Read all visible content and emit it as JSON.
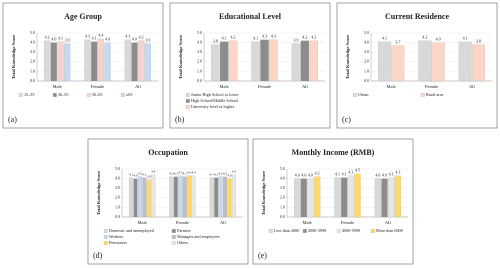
{
  "chart_data": [
    {
      "type": "bar",
      "title": "Age Group",
      "panel_label": "(a)",
      "ylabel": "Total Knowledge Score",
      "categories": [
        "Male",
        "Female",
        "All"
      ],
      "series": [
        {
          "name": "15–35",
          "color": "#d9d9d9",
          "values": [
            4.2,
            4.3,
            4.3
          ],
          "value_labels": [
            "4.2",
            "4.3",
            "4.3"
          ]
        },
        {
          "name": "36–55",
          "color": "#8c8c8c",
          "values": [
            4.0,
            4.1,
            4.0
          ],
          "value_labels": [
            "4.0",
            "4.1",
            "4.0"
          ]
        },
        {
          "name": "56–65",
          "color": "#f6d2cf",
          "values": [
            4.1,
            4.4,
            4.2
          ],
          "value_labels": [
            "4.1",
            "4.4",
            "4.2"
          ]
        },
        {
          "name": "≥65",
          "color": "#c5d9f1",
          "values": [
            3.9,
            4.0,
            3.9
          ],
          "value_labels": [
            "3.9",
            "4.0",
            "3.9"
          ]
        }
      ],
      "ylim": [
        0,
        5
      ],
      "yticks": [
        {
          "value": 0,
          "label": "0.0"
        },
        {
          "value": 1,
          "label": "1.0"
        },
        {
          "value": 2,
          "label": "2.0"
        },
        {
          "value": 3,
          "label": "3.0"
        },
        {
          "value": 4,
          "label": "4.0"
        },
        {
          "value": 5,
          "label": "5.0"
        }
      ],
      "grid": true
    },
    {
      "type": "bar",
      "title": "Educational Level",
      "panel_label": "(b)",
      "ylabel": "Total Knowledge Score",
      "categories": [
        "Male",
        "Female",
        "All"
      ],
      "series": [
        {
          "name": "Junior High School or lower",
          "color": "#d9d9d9",
          "values": [
            3.8,
            4.1,
            3.9
          ],
          "value_labels": [
            "3.8",
            "4.1",
            "3.9"
          ]
        },
        {
          "name": "High School/Middle School",
          "color": "#8c8c8c",
          "values": [
            4.1,
            4.3,
            4.2
          ],
          "value_labels": [
            "4.1",
            "4.3",
            "4.2"
          ]
        },
        {
          "name": "University level or higher",
          "color": "#fbd5c5",
          "values": [
            4.2,
            4.3,
            4.2
          ],
          "value_labels": [
            "4.2",
            "4.3",
            "4.2"
          ]
        }
      ],
      "ylim": [
        0,
        5
      ],
      "yticks": [
        {
          "value": 0,
          "label": "0.0"
        },
        {
          "value": 1,
          "label": "1.0"
        },
        {
          "value": 2,
          "label": "2.0"
        },
        {
          "value": 3,
          "label": "3.0"
        },
        {
          "value": 4,
          "label": "4.0"
        },
        {
          "value": 5,
          "label": "5.0"
        }
      ],
      "grid": true
    },
    {
      "type": "bar",
      "title": "Current Residence",
      "panel_label": "(c)",
      "ylabel": "Total Knowledge Score",
      "categories": [
        "Male",
        "Female",
        "All"
      ],
      "series": [
        {
          "name": "Urban",
          "color": "#d9d9d9",
          "values": [
            4.1,
            4.2,
            4.1
          ],
          "value_labels": [
            "4.1",
            "4.2",
            "4.1"
          ]
        },
        {
          "name": "Rural area",
          "color": "#fbd5c5",
          "values": [
            3.7,
            4.0,
            3.8
          ],
          "value_labels": [
            "3.7",
            "4.0",
            "3.8"
          ]
        }
      ],
      "ylim": [
        0,
        5
      ],
      "yticks": [
        {
          "value": 0,
          "label": "0.0"
        },
        {
          "value": 1,
          "label": "1.0"
        },
        {
          "value": 2,
          "label": "2.0"
        },
        {
          "value": 3,
          "label": "3.0"
        },
        {
          "value": 4,
          "label": "4.0"
        },
        {
          "value": 5,
          "label": "5.0"
        }
      ],
      "grid": true
    },
    {
      "type": "bar",
      "title": "Occupation",
      "panel_label": "(d)",
      "ylabel": "Total Knowledge Score",
      "categories": [
        "Male",
        "Female",
        "All"
      ],
      "series": [
        {
          "name": "Domestic and unemployed",
          "color": "#d9d9d9",
          "values": [
            4.1,
            4.2,
            4.1
          ],
          "value_labels": [
            "4.1",
            "4.2",
            "4.1"
          ]
        },
        {
          "name": "Farmers",
          "color": "#8c8c8c",
          "values": [
            4.0,
            4.2,
            4.1
          ],
          "value_labels": [
            "4.0",
            "4.2",
            "4.1"
          ]
        },
        {
          "name": "Workers",
          "color": "#c5d9f1",
          "values": [
            4.2,
            4.3,
            4.2
          ],
          "value_labels": [
            "4.2",
            "4.3",
            "4.2"
          ]
        },
        {
          "name": "Managers and employees",
          "color": "#bfbfbf",
          "values": [
            4.1,
            4.2,
            4.2
          ],
          "value_labels": [
            "4.1",
            "4.2",
            "4.2"
          ]
        },
        {
          "name": "Pensioners",
          "color": "#ffd966",
          "values": [
            3.9,
            4.3,
            4.0
          ],
          "value_labels": [
            "3.9",
            "4.3",
            "4.0"
          ]
        },
        {
          "name": "Others",
          "color": "#e7e6e6",
          "values": [
            4.4,
            4.3,
            4.4
          ],
          "value_labels": [
            "4.4",
            "4.3",
            "4.4"
          ]
        }
      ],
      "ylim": [
        0,
        5
      ],
      "yticks": [
        {
          "value": 0,
          "label": "0.0"
        },
        {
          "value": 1,
          "label": "1.0"
        },
        {
          "value": 2,
          "label": "2.0"
        },
        {
          "value": 3,
          "label": "3.0"
        },
        {
          "value": 4,
          "label": "4.0"
        },
        {
          "value": 5,
          "label": "5.0"
        }
      ],
      "grid": true
    },
    {
      "type": "bar",
      "title": "Monthly Income (RMB)",
      "panel_label": "(e)",
      "ylabel": "Total Knowledge Score",
      "categories": [
        "Male",
        "Female",
        "All"
      ],
      "series": [
        {
          "name": "Less than 2000",
          "color": "#d9d9d9",
          "values": [
            4.0,
            4.1,
            4.0
          ],
          "value_labels": [
            "4.0",
            "4.1",
            "4.0"
          ]
        },
        {
          "name": "2000-3999",
          "color": "#8c8c8c",
          "values": [
            4.0,
            4.1,
            4.0
          ],
          "value_labels": [
            "4.0",
            "4.1",
            "4.0"
          ]
        },
        {
          "name": "4000-5999",
          "color": "#e7e6e6",
          "values": [
            4.0,
            4.3,
            4.1
          ],
          "value_labels": [
            "4.0",
            "4.3",
            "4.1"
          ]
        },
        {
          "name": "More than 6000",
          "color": "#ffd966",
          "values": [
            4.2,
            4.5,
            4.3
          ],
          "value_labels": [
            "4.2",
            "4.5",
            "4.3"
          ]
        }
      ],
      "ylim": [
        0,
        5
      ],
      "yticks": [
        {
          "value": 0,
          "label": "0.0"
        },
        {
          "value": 1,
          "label": "1.0"
        },
        {
          "value": 2,
          "label": "2.0"
        },
        {
          "value": 3,
          "label": "3.0"
        },
        {
          "value": 4,
          "label": "4.0"
        },
        {
          "value": 5,
          "label": "5.0"
        }
      ],
      "grid": true
    }
  ]
}
